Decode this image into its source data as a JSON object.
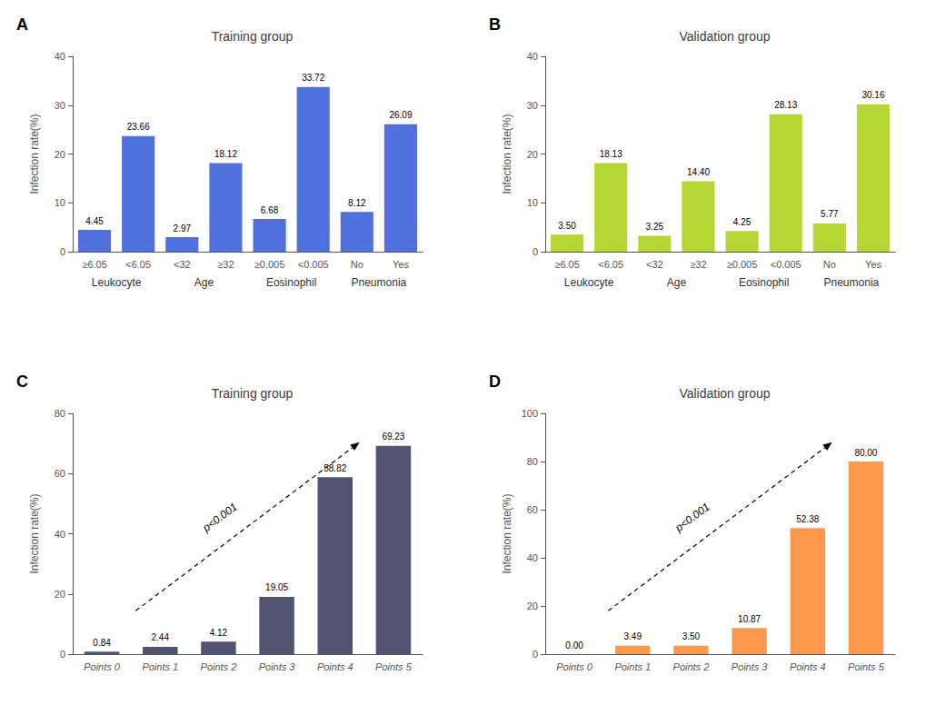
{
  "chart_data": [
    {
      "type": "bar",
      "title": "Training group",
      "panel_label": "A",
      "ylabel": "Infection rate(%)",
      "categories": [
        "≥6.05",
        "<6.05",
        "<32",
        "≥32",
        "≥0.005",
        "<0.005",
        "No",
        "Yes"
      ],
      "group_labels": [
        "Leukocyte",
        "Age",
        "Eosinophil",
        "Pneumonia"
      ],
      "values": [
        4.45,
        23.66,
        2.97,
        18.12,
        6.68,
        33.72,
        8.12,
        26.09
      ],
      "value_labels": [
        "4.45",
        "23.66",
        "2.97",
        "18.12",
        "6.68",
        "33.72",
        "8.12",
        "26.09"
      ],
      "data_labels": true,
      "grid": false,
      "ylim": [
        0,
        40
      ],
      "yticks": [
        0,
        10,
        20,
        30,
        40
      ]
    },
    {
      "type": "bar",
      "title": "Validation group",
      "panel_label": "B",
      "ylabel": "Infection rate(%)",
      "categories": [
        "≥6.05",
        "<6.05",
        "<32",
        "≥32",
        "≥0.005",
        "<0.005",
        "No",
        "Yes"
      ],
      "group_labels": [
        "Leukocyte",
        "Age",
        "Eosinophil",
        "Pneumonia"
      ],
      "values": [
        3.5,
        18.13,
        3.25,
        14.4,
        4.25,
        28.13,
        5.77,
        30.16
      ],
      "value_labels": [
        "3.50",
        "18.13",
        "3.25",
        "14.40",
        "4.25",
        "28.13",
        "5.77",
        "30.16"
      ],
      "data_labels": true,
      "grid": false,
      "ylim": [
        0,
        40
      ],
      "yticks": [
        0,
        10,
        20,
        30,
        40
      ]
    },
    {
      "type": "bar",
      "title": "Training group",
      "panel_label": "C",
      "ylabel": "Infection rate(%)",
      "categories": [
        "Points 0",
        "Points 1",
        "Points 2",
        "Points 3",
        "Points 4",
        "Points 5"
      ],
      "values": [
        0.84,
        2.44,
        4.12,
        19.05,
        58.82,
        69.23
      ],
      "value_labels": [
        "0.84",
        "2.44",
        "4.12",
        "19.05",
        "58.82",
        "69.23"
      ],
      "annotation": "p<0.001",
      "data_labels": true,
      "grid": false,
      "ylim": [
        0,
        80
      ],
      "yticks": [
        0,
        20,
        40,
        60,
        80
      ]
    },
    {
      "type": "bar",
      "title": "Validation group",
      "panel_label": "D",
      "ylabel": "Infection rate(%)",
      "categories": [
        "Points 0",
        "Points 1",
        "Points 2",
        "Points 3",
        "Points 4",
        "Points 5"
      ],
      "values": [
        0.0,
        3.49,
        3.5,
        10.87,
        52.38,
        80.0
      ],
      "value_labels": [
        "0.00",
        "3.49",
        "3.50",
        "10.87",
        "52.38",
        "80.00"
      ],
      "annotation": "p<0.001",
      "data_labels": true,
      "grid": false,
      "ylim": [
        0,
        100
      ],
      "yticks": [
        0,
        20,
        40,
        60,
        80,
        100
      ]
    }
  ]
}
